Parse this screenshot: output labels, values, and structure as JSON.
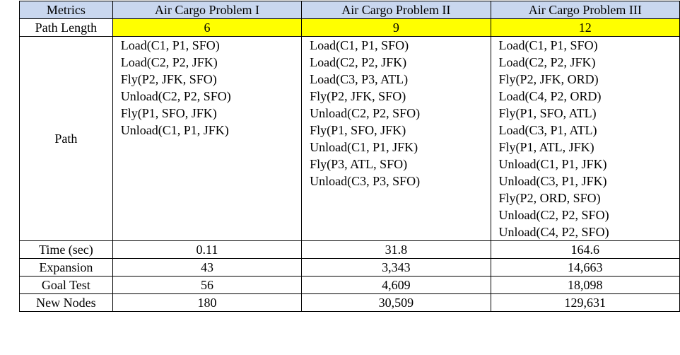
{
  "table": {
    "headers": [
      "Metrics",
      "Air Cargo Problem I",
      "Air Cargo Problem II",
      "Air Cargo Problem III"
    ],
    "path_length": {
      "label": "Path Length",
      "values": [
        "6",
        "9",
        "12"
      ]
    },
    "path": {
      "label": "Path",
      "problems": [
        [
          "Load(C1, P1, SFO)",
          "Load(C2, P2, JFK)",
          "Fly(P2, JFK, SFO)",
          "Unload(C2, P2, SFO)",
          "Fly(P1, SFO, JFK)",
          "Unload(C1, P1, JFK)"
        ],
        [
          "Load(C1, P1, SFO)",
          "Load(C2, P2, JFK)",
          "Load(C3, P3, ATL)",
          "Fly(P2, JFK, SFO)",
          "Unload(C2, P2, SFO)",
          "Fly(P1, SFO, JFK)",
          "Unload(C1, P1, JFK)",
          "Fly(P3, ATL, SFO)",
          "Unload(C3, P3, SFO)"
        ],
        [
          "Load(C1, P1, SFO)",
          "Load(C2, P2, JFK)",
          "Fly(P2, JFK, ORD)",
          "Load(C4, P2, ORD)",
          "Fly(P1, SFO, ATL)",
          "Load(C3, P1, ATL)",
          "Fly(P1, ATL, JFK)",
          "Unload(C1, P1, JFK)",
          "Unload(C3, P1, JFK)",
          "Fly(P2, ORD, SFO)",
          "Unload(C2, P2, SFO)",
          "Unload(C4, P2, SFO)"
        ]
      ]
    },
    "stats": [
      {
        "label": "Time (sec)",
        "values": [
          "0.11",
          "31.8",
          "164.6"
        ]
      },
      {
        "label": "Expansion",
        "values": [
          "43",
          "3,343",
          "14,663"
        ]
      },
      {
        "label": "Goal Test",
        "values": [
          "56",
          "4,609",
          "18,098"
        ]
      },
      {
        "label": "New Nodes",
        "values": [
          "180",
          "30,509",
          "129,631"
        ]
      }
    ]
  },
  "colors": {
    "header_background": "#c9d7ef",
    "path_length_highlight": "#ffff00",
    "border": "#000000"
  }
}
